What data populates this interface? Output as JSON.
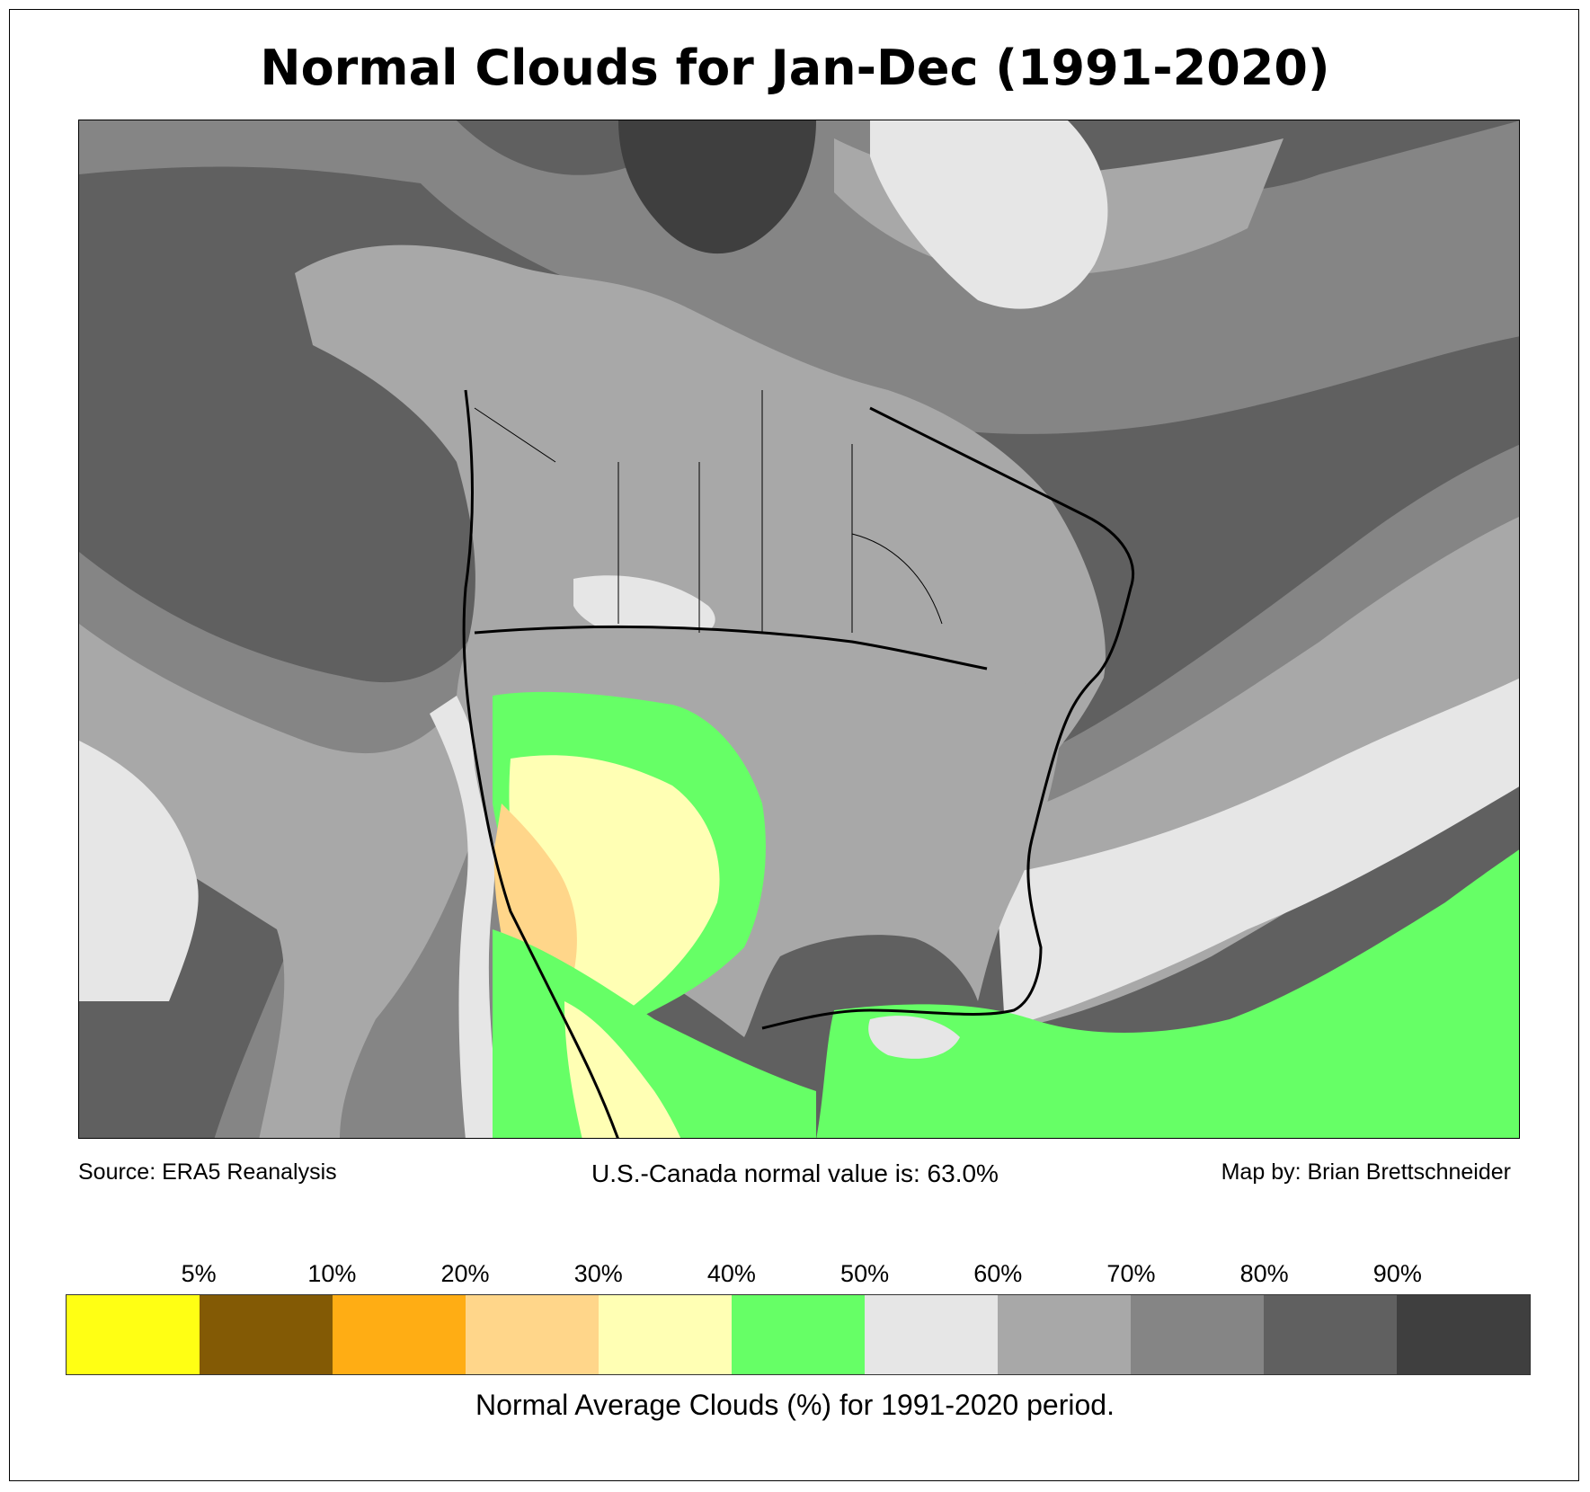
{
  "title": "Normal Clouds for Jan-Dec (1991-2020)",
  "footer": {
    "source": "Source: ERA5 Reanalysis",
    "normal_value": "U.S.-Canada normal value is: 63.0%",
    "credit": "Map by: Brian Brettschneider"
  },
  "legend": {
    "caption": "Normal Average Clouds (%) for 1991-2020 period.",
    "ticks": [
      "5%",
      "10%",
      "20%",
      "30%",
      "40%",
      "50%",
      "60%",
      "70%",
      "80%",
      "90%"
    ],
    "colors": [
      "#ffff14",
      "#835a05",
      "#ffad14",
      "#ffd68a",
      "#ffffb4",
      "#66ff66",
      "#e6e6e6",
      "#a8a8a8",
      "#858585",
      "#606060",
      "#3f3f3f"
    ]
  },
  "map_colors": {
    "ocean_dark": "#606060",
    "cloud_80": "#858585",
    "cloud_70": "#a8a8a8",
    "cloud_60": "#e6e6e6",
    "cloud_50": "#66ff66",
    "cloud_40": "#ffffb4",
    "cloud_30": "#ffd68a",
    "cloud_90": "#3f3f3f"
  }
}
